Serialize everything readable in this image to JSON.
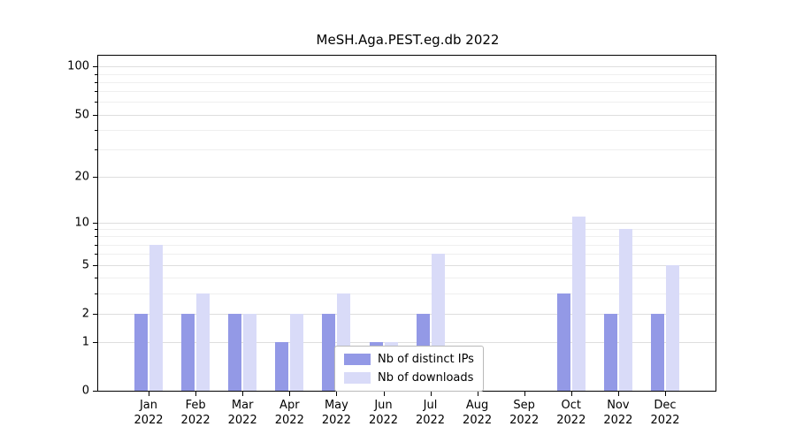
{
  "chart_data": {
    "type": "bar",
    "title": "MeSH.Aga.PEST.eg.db 2022",
    "categories": [
      {
        "month": "Jan",
        "year": "2022"
      },
      {
        "month": "Feb",
        "year": "2022"
      },
      {
        "month": "Mar",
        "year": "2022"
      },
      {
        "month": "Apr",
        "year": "2022"
      },
      {
        "month": "May",
        "year": "2022"
      },
      {
        "month": "Jun",
        "year": "2022"
      },
      {
        "month": "Jul",
        "year": "2022"
      },
      {
        "month": "Aug",
        "year": "2022"
      },
      {
        "month": "Sep",
        "year": "2022"
      },
      {
        "month": "Oct",
        "year": "2022"
      },
      {
        "month": "Nov",
        "year": "2022"
      },
      {
        "month": "Dec",
        "year": "2022"
      }
    ],
    "series": [
      {
        "name": "Nb of distinct IPs",
        "color": "#9399e6",
        "values": [
          2,
          2,
          2,
          1,
          2,
          1,
          2,
          0,
          0,
          3,
          2,
          2
        ]
      },
      {
        "name": "Nb of downloads",
        "color": "#d9dbf8",
        "values": [
          7,
          3,
          2,
          2,
          3,
          1,
          6,
          0,
          0,
          11,
          9,
          5
        ]
      }
    ],
    "xlabel": "",
    "ylabel": "",
    "yscale": "log1p",
    "ylim": [
      0,
      117
    ],
    "yticks": [
      0,
      1,
      2,
      5,
      10,
      20,
      50,
      100
    ],
    "minor_yticks": [
      3,
      4,
      6,
      7,
      8,
      9,
      30,
      40,
      60,
      70,
      80,
      90
    ],
    "grid": true,
    "legend_position": "lower-center-inside"
  }
}
